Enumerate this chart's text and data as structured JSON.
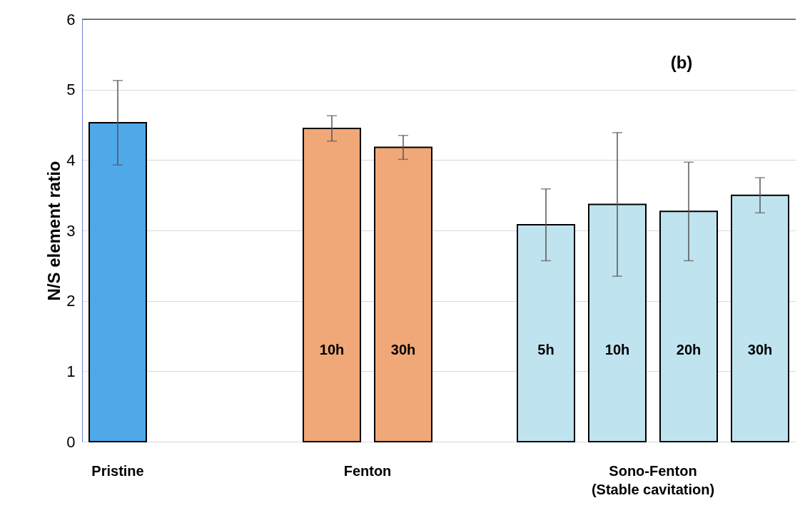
{
  "chart_data": {
    "type": "bar",
    "title": "(b)",
    "ylabel": "N/S element ratio",
    "categories": [
      null,
      null,
      null,
      "10h",
      "30h",
      null,
      "5h",
      "10h",
      "20h",
      "30h"
    ],
    "values": [
      4.53,
      null,
      null,
      4.45,
      4.18,
      null,
      3.08,
      3.37,
      3.27,
      3.5
    ],
    "errors": [
      0.6,
      null,
      null,
      0.18,
      0.17,
      null,
      0.51,
      1.02,
      0.7,
      0.25
    ],
    "colors": [
      "#4fa8e8",
      null,
      null,
      "#f0a878",
      "#f0a878",
      null,
      "#bfe4f0",
      "#bfe4f0",
      "#bfe4f0",
      "#bfe4f0"
    ],
    "annotations": [
      "Pristine",
      "Fenton",
      "Sono-Fenton\n(Stable cavitation)"
    ],
    "ylim": [
      0,
      6
    ],
    "yticks": [
      0,
      1,
      2,
      3,
      4,
      5,
      6
    ],
    "grid": "y"
  }
}
